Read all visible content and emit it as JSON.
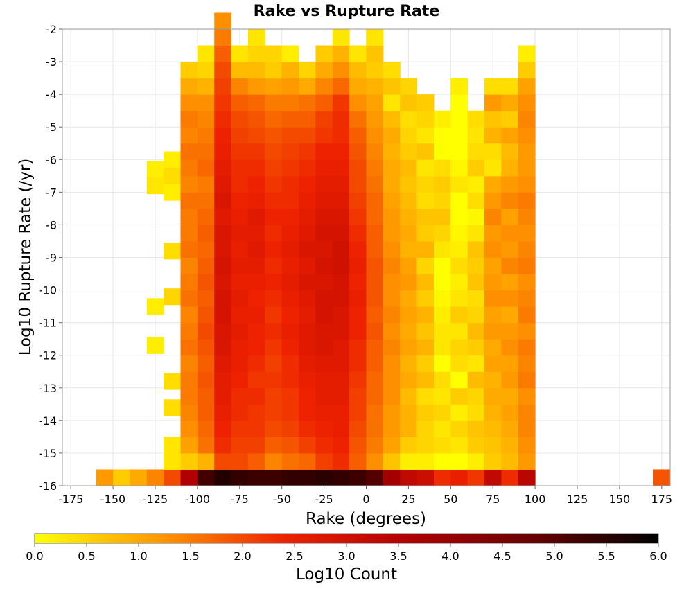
{
  "chart_data": {
    "type": "heatmap",
    "title": "Rake vs Rupture Rate",
    "xlabel": "Rake (degrees)",
    "ylabel": "Log10 Rupture Rate (/yr)",
    "xlim": [
      -180,
      180
    ],
    "ylim": [
      -16,
      -2
    ],
    "x_bin_width": 10,
    "y_bin_width": 0.5,
    "x_ticks": [
      -175,
      -150,
      -125,
      -100,
      -75,
      -50,
      -25,
      0,
      25,
      50,
      75,
      100,
      125,
      150,
      175
    ],
    "y_ticks": [
      -2,
      -3,
      -4,
      -5,
      -6,
      -7,
      -8,
      -9,
      -10,
      -11,
      -12,
      -13,
      -14,
      -15,
      -16
    ],
    "grid": true,
    "colorscale": {
      "label": "Log10 Count",
      "range": [
        0,
        6
      ],
      "ticks": [
        "0.0",
        "0.5",
        "1.0",
        "1.5",
        "2.0",
        "2.5",
        "3.0",
        "3.5",
        "4.0",
        "4.5",
        "5.0",
        "5.5",
        "6.0"
      ],
      "stops": [
        "#ffff00",
        "#ff9900",
        "#ee2200",
        "#b00000",
        "#660000",
        "#000000"
      ]
    },
    "columns": [
      {
        "x": -155,
        "from": -16.0,
        "values": [
          1.2
        ]
      },
      {
        "x": -145,
        "from": -16.0,
        "values": [
          0.6
        ]
      },
      {
        "x": -135,
        "from": -16.0,
        "values": [
          1.0
        ]
      },
      {
        "x": -125,
        "from": -16.0,
        "values": [
          1.4
        ],
        "extra": [
          {
            "y": -6.3,
            "v": 0.2
          },
          {
            "y": -6.8,
            "v": 0.3
          },
          {
            "y": -10.5,
            "v": 0.2
          },
          {
            "y": -11.7,
            "v": 0.2
          }
        ]
      },
      {
        "x": -115,
        "from": -16.0,
        "values": [
          2.0,
          0.3,
          0.3
        ],
        "extra": [
          {
            "y": -6.0,
            "v": 0.2
          },
          {
            "y": -6.5,
            "v": 0.4
          },
          {
            "y": -7.0,
            "v": 0.2
          },
          {
            "y": -8.8,
            "v": 0.4
          },
          {
            "y": -10.2,
            "v": 0.5
          },
          {
            "y": -12.8,
            "v": 0.4
          },
          {
            "y": -13.6,
            "v": 0.4
          }
        ]
      },
      {
        "x": -105,
        "from": -16.0,
        "values": [
          3.6,
          0.6,
          1.1,
          1.3,
          1.4,
          1.5,
          1.5,
          1.4,
          1.6,
          1.5,
          1.4,
          1.6,
          1.5,
          1.4,
          1.6,
          1.5,
          1.5,
          1.6,
          1.4,
          1.5,
          1.6,
          1.4,
          1.5,
          1.3,
          1.0,
          0.6
        ]
      },
      {
        "x": -95,
        "from": -16.0,
        "values": [
          5.2,
          0.9,
          1.6,
          1.7,
          1.8,
          1.8,
          1.9,
          1.8,
          1.9,
          2.0,
          1.9,
          1.8,
          1.9,
          1.8,
          1.7,
          1.8,
          1.7,
          1.6,
          1.5,
          1.7,
          1.6,
          1.5,
          1.4,
          1.3,
          0.9,
          0.5,
          0.3
        ]
      },
      {
        "x": -85,
        "from": -16.0,
        "values": [
          5.6,
          2.0,
          2.3,
          2.4,
          2.5,
          2.6,
          2.6,
          2.7,
          2.8,
          2.8,
          2.9,
          2.9,
          2.8,
          2.9,
          2.8,
          2.8,
          2.7,
          2.8,
          2.7,
          2.6,
          2.5,
          2.4,
          2.3,
          2.2,
          2.1,
          2.0,
          1.8,
          1.5,
          1.3
        ]
      },
      {
        "x": -75,
        "from": -16.0,
        "values": [
          5.4,
          2.0,
          2.1,
          2.2,
          2.3,
          2.3,
          2.4,
          2.5,
          2.5,
          2.6,
          2.5,
          2.6,
          2.5,
          2.6,
          2.5,
          2.6,
          2.5,
          2.4,
          2.3,
          2.3,
          2.2,
          2.1,
          2.0,
          1.8,
          1.4,
          0.8,
          0.3
        ]
      },
      {
        "x": -65,
        "from": -16.0,
        "values": [
          5.3,
          1.8,
          2.1,
          2.2,
          2.2,
          2.3,
          2.2,
          2.3,
          2.4,
          2.4,
          2.5,
          2.4,
          2.5,
          2.6,
          2.7,
          2.6,
          2.7,
          2.5,
          2.4,
          2.3,
          2.2,
          2.0,
          1.9,
          1.7,
          1.2,
          0.8,
          0.5,
          0.3
        ]
      },
      {
        "x": -55,
        "from": -16.0,
        "values": [
          5.3,
          1.4,
          1.8,
          2.0,
          2.1,
          2.1,
          2.2,
          2.1,
          2.2,
          2.3,
          2.2,
          2.3,
          2.4,
          2.3,
          2.4,
          2.3,
          2.4,
          2.3,
          2.2,
          2.1,
          2.0,
          1.9,
          1.7,
          1.5,
          1.1,
          0.6,
          0.5
        ]
      },
      {
        "x": -45,
        "from": -16.0,
        "values": [
          5.4,
          1.6,
          1.9,
          2.1,
          2.2,
          2.2,
          2.3,
          2.3,
          2.4,
          2.5,
          2.4,
          2.5,
          2.6,
          2.5,
          2.6,
          2.5,
          2.4,
          2.3,
          2.3,
          2.2,
          2.1,
          2.0,
          1.8,
          1.5,
          1.2,
          0.9,
          0.2
        ]
      },
      {
        "x": -35,
        "from": -16.0,
        "values": [
          5.4,
          1.7,
          2.1,
          2.3,
          2.4,
          2.4,
          2.5,
          2.6,
          2.7,
          2.7,
          2.6,
          2.7,
          2.8,
          2.7,
          2.8,
          2.7,
          2.6,
          2.5,
          2.4,
          2.3,
          2.2,
          2.0,
          1.8,
          1.6,
          1.0,
          0.5
        ]
      },
      {
        "x": -25,
        "from": -16.0,
        "values": [
          5.5,
          2.1,
          2.3,
          2.4,
          2.5,
          2.6,
          2.6,
          2.7,
          2.8,
          2.8,
          2.9,
          2.9,
          2.8,
          2.9,
          2.8,
          2.9,
          2.8,
          2.7,
          2.6,
          2.5,
          2.4,
          2.2,
          2.1,
          1.8,
          1.4,
          1.0,
          0.6
        ]
      },
      {
        "x": -15,
        "from": -16.0,
        "values": [
          5.4,
          2.3,
          2.4,
          2.5,
          2.5,
          2.6,
          2.6,
          2.7,
          2.7,
          2.8,
          2.8,
          2.9,
          2.9,
          3.0,
          3.0,
          2.9,
          2.8,
          2.7,
          2.6,
          2.5,
          2.4,
          2.3,
          2.3,
          2.2,
          1.7,
          1.3,
          0.9,
          0.3
        ]
      },
      {
        "x": -5,
        "from": -16.0,
        "values": [
          5.3,
          1.8,
          1.9,
          2.0,
          2.1,
          2.1,
          2.2,
          2.3,
          2.3,
          2.4,
          2.4,
          2.5,
          2.4,
          2.5,
          2.4,
          2.3,
          2.2,
          2.1,
          2.0,
          2.0,
          1.9,
          1.8,
          1.6,
          1.3,
          1.0,
          0.8,
          0.3
        ]
      },
      {
        "x": 5,
        "from": -16.0,
        "values": [
          5.0,
          1.3,
          1.5,
          1.6,
          1.6,
          1.7,
          1.7,
          1.8,
          1.8,
          1.9,
          1.8,
          1.9,
          1.9,
          1.9,
          1.8,
          1.8,
          1.7,
          1.7,
          1.6,
          1.5,
          1.4,
          1.3,
          1.2,
          1.1,
          0.9,
          0.6,
          0.7,
          0.3
        ]
      },
      {
        "x": 15,
        "from": -16.0,
        "values": [
          3.8,
          0.7,
          1.1,
          1.2,
          1.2,
          1.3,
          1.3,
          1.3,
          1.4,
          1.3,
          1.4,
          1.3,
          1.3,
          1.4,
          1.3,
          1.2,
          1.2,
          1.1,
          1.0,
          1.0,
          0.9,
          1.0,
          0.8,
          0.3,
          0.7,
          0.4
        ]
      },
      {
        "x": 25,
        "from": -16.0,
        "values": [
          3.3,
          0.2,
          0.6,
          0.9,
          0.9,
          0.8,
          1.0,
          0.9,
          1.1,
          1.0,
          1.1,
          1.0,
          1.2,
          1.1,
          0.9,
          1.0,
          0.9,
          0.8,
          0.7,
          0.8,
          0.6,
          0.5,
          0.4,
          0.7,
          0.5
        ]
      },
      {
        "x": 35,
        "from": -16.0,
        "values": [
          3.1,
          0.2,
          0.5,
          0.5,
          0.6,
          0.4,
          0.8,
          0.6,
          0.9,
          0.7,
          0.9,
          0.6,
          0.8,
          0.5,
          0.9,
          0.6,
          0.7,
          0.4,
          0.5,
          0.3,
          0.7,
          0.3,
          0.5,
          0.6
        ]
      },
      {
        "x": 45,
        "from": -16.0,
        "values": [
          2.3,
          0.0,
          0.4,
          0.3,
          0.5,
          0.3,
          0.4,
          0.0,
          0.3,
          0.3,
          0.2,
          0.1,
          0.0,
          0.0,
          0.3,
          0.5,
          0.7,
          0.5,
          0.6,
          0.4,
          0.0,
          0.0,
          0.2
        ]
      },
      {
        "x": 55,
        "from": -16.0,
        "values": [
          2.5,
          0.0,
          0.3,
          0.5,
          0.2,
          0.6,
          0.0,
          0.4,
          0.5,
          0.3,
          0.6,
          0.3,
          0.2,
          0.4,
          0.2,
          0.1,
          0.0,
          0.0,
          0.3,
          0.1,
          0.0,
          0.0,
          0.0,
          0.0,
          0.2
        ]
      },
      {
        "x": 65,
        "from": -16.0,
        "values": [
          2.2,
          0.2,
          0.6,
          0.7,
          0.4,
          0.5,
          0.8,
          0.3,
          0.6,
          0.8,
          0.5,
          0.4,
          0.7,
          0.6,
          0.7,
          0.3,
          0.1,
          0.4,
          0.2,
          0.6,
          0.4,
          0.3,
          0.4
        ]
      },
      {
        "x": 75,
        "from": -16.0,
        "values": [
          3.3,
          0.6,
          0.7,
          0.8,
          0.9,
          1.0,
          0.9,
          1.1,
          1.0,
          1.2,
          1.1,
          1.3,
          1.2,
          1.1,
          1.3,
          1.2,
          1.4,
          1.2,
          1.0,
          0.3,
          0.4,
          0.9,
          0.7,
          1.2,
          0.4
        ]
      },
      {
        "x": 85,
        "from": -16.0,
        "values": [
          2.3,
          0.8,
          0.9,
          1.0,
          1.1,
          1.0,
          1.2,
          1.1,
          1.3,
          1.2,
          1.0,
          1.3,
          1.1,
          1.4,
          1.2,
          1.3,
          1.1,
          1.4,
          1.2,
          0.9,
          0.8,
          1.1,
          0.6,
          1.0,
          0.4
        ]
      },
      {
        "x": 95,
        "from": -16.0,
        "values": [
          3.4,
          1.2,
          1.3,
          1.4,
          1.4,
          1.3,
          1.5,
          1.4,
          1.5,
          1.3,
          1.5,
          1.4,
          1.3,
          1.5,
          1.4,
          1.3,
          1.4,
          1.5,
          1.3,
          1.2,
          1.2,
          1.3,
          1.4,
          1.3,
          1.1,
          0.6,
          0.2
        ]
      },
      {
        "x": 175,
        "from": -16.0,
        "values": [
          1.9
        ]
      }
    ]
  }
}
